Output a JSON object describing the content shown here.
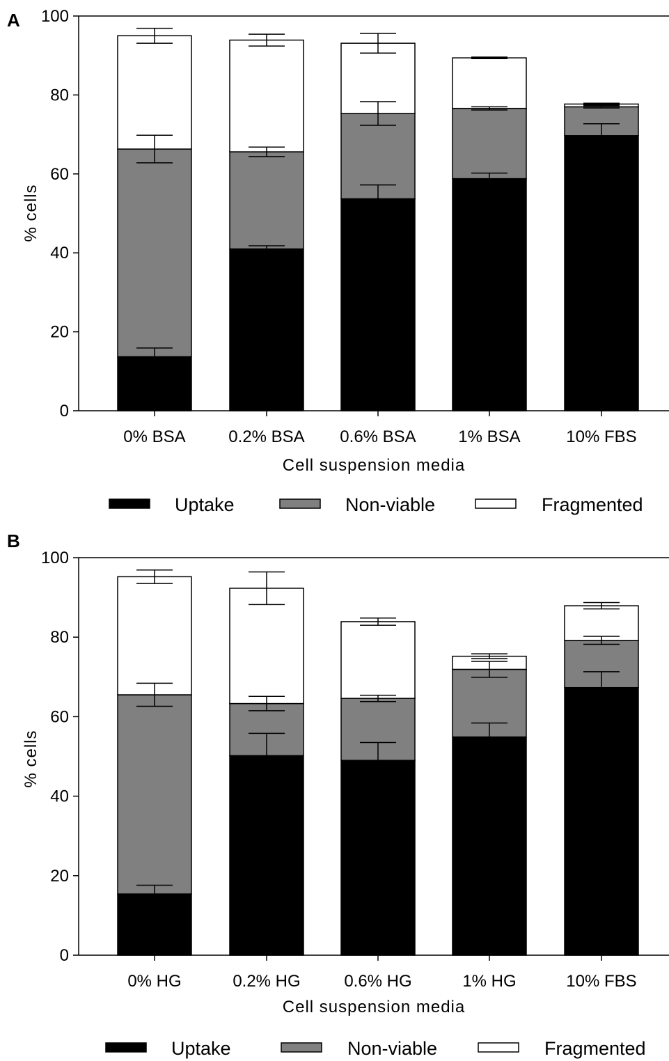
{
  "series_colors": {
    "Uptake": "#000000",
    "Non-viable": "#808080",
    "Fragmented": "#ffffff"
  },
  "chart_data": [
    {
      "panel": "A",
      "type": "bar",
      "stacked": true,
      "xlabel": "Cell suspension media",
      "ylabel": "% cells",
      "ylim": [
        0,
        100
      ],
      "yticks": [
        "0",
        "20",
        "40",
        "60",
        "80",
        "100"
      ],
      "categories": [
        "0% BSA",
        "0.2% BSA",
        "0.6% BSA",
        "1% BSA",
        "10% FBS"
      ],
      "legend": [
        "Uptake",
        "Non-viable",
        "Fragmented"
      ],
      "legend_position": "bottom",
      "series": [
        {
          "name": "Uptake",
          "values": [
            13.7,
            41,
            53.7,
            58.8,
            69.7
          ],
          "errors": [
            2.2,
            0.8,
            3.5,
            1.4,
            3
          ]
        },
        {
          "name": "Non-viable",
          "values": [
            52.6,
            24.6,
            21.6,
            17.8,
            7.3
          ],
          "errors": [
            3.5,
            1.2,
            3.0,
            0.4,
            0.3
          ]
        },
        {
          "name": "Fragmented",
          "values": [
            28.7,
            28.3,
            17.8,
            12.8,
            0.7
          ],
          "errors": [
            1.9,
            1.5,
            2.5,
            0.2,
            0.2
          ]
        }
      ]
    },
    {
      "panel": "B",
      "type": "bar",
      "stacked": true,
      "xlabel": "Cell suspension media",
      "ylabel": "% cells",
      "ylim": [
        0,
        100
      ],
      "yticks": [
        "0",
        "20",
        "40",
        "60",
        "80",
        "100"
      ],
      "categories": [
        "0% HG",
        "0.2% HG",
        "0.6% HG",
        "1% HG",
        "10% FBS"
      ],
      "legend": [
        "Uptake",
        "Non-viable",
        "Fragmented"
      ],
      "legend_position": "bottom",
      "series": [
        {
          "name": "Uptake",
          "values": [
            15.4,
            50.2,
            49,
            54.9,
            67.3
          ],
          "errors": [
            2.2,
            5.6,
            4.5,
            3.5,
            4.0
          ]
        },
        {
          "name": "Non-viable",
          "values": [
            50.1,
            13.1,
            15.6,
            17.0,
            11.9
          ],
          "errors": [
            2.9,
            1.8,
            0.8,
            2.0,
            1.0
          ]
        },
        {
          "name": "Fragmented",
          "values": [
            29.7,
            29.0,
            19.3,
            3.3,
            8.7
          ],
          "errors": [
            1.7,
            4.1,
            0.9,
            0.6,
            0.8
          ]
        }
      ]
    }
  ]
}
